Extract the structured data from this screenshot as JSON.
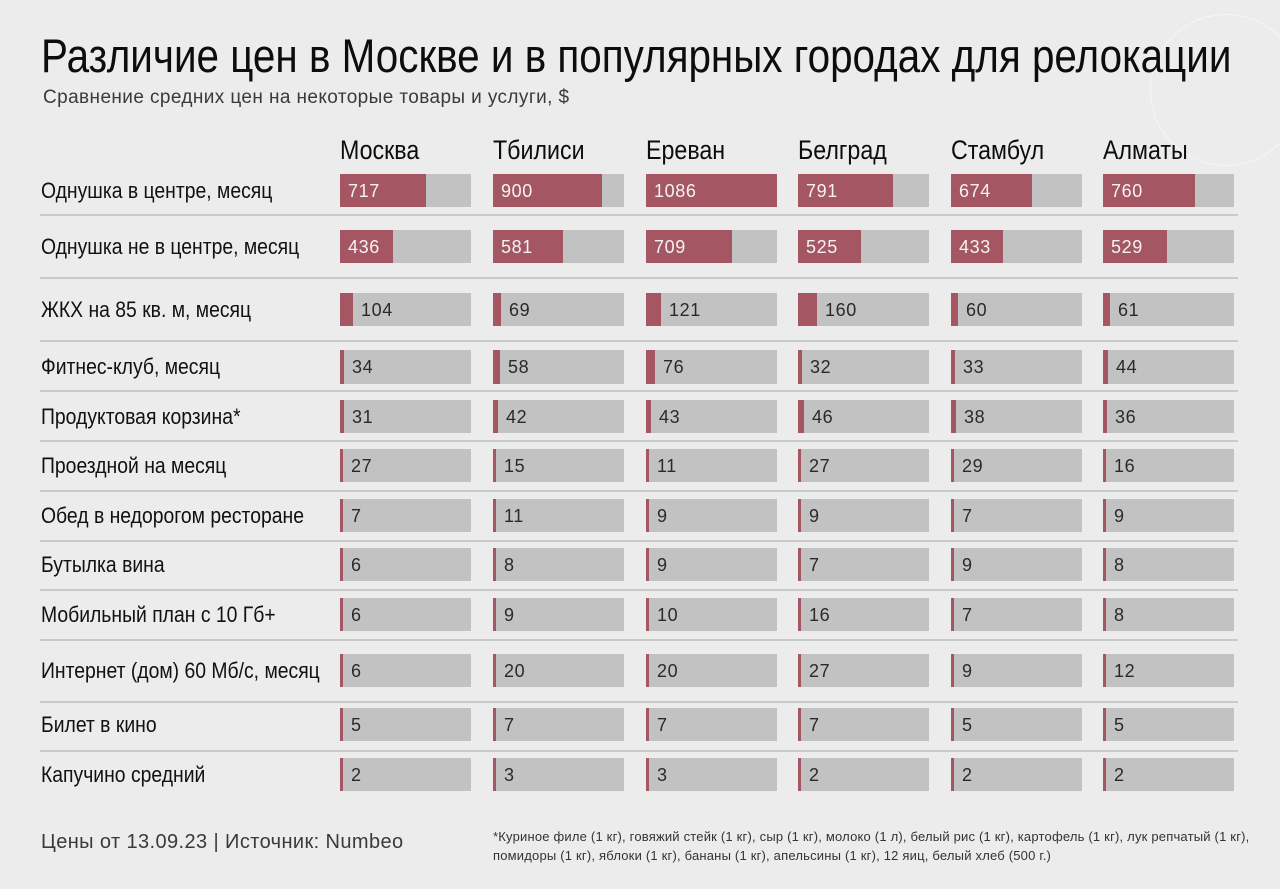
{
  "header": {
    "title": "Различие цен в Москве и в популярных городах для релокации",
    "subtitle": "Сравнение средних цен на некоторые товары и услуги, $"
  },
  "colors": {
    "background": "#ececec",
    "bar_fill": "#a45762",
    "bar_track": "#c2c2c2",
    "divider": "#c9c9c9"
  },
  "footer": {
    "source": "Цены от 13.09.23 | Источник: Numbeo",
    "footnote": "*Куриное филе (1 кг), говяжий стейк (1 кг), сыр (1 кг), молоко (1 л), белый рис (1 кг), картофель (1 кг), лук репчатый (1 кг), помидоры (1 кг), яблоки (1 кг), бананы (1 кг), апельсины (1 кг), 12 яиц, белый хлеб (500 г.)"
  },
  "chart_data": {
    "type": "table",
    "title": "Различие цен в Москве и в популярных городах для релокации",
    "subtitle": "Сравнение средних цен на некоторые товары и услуги, $",
    "unit": "$",
    "columns": [
      "Москва",
      "Тбилиси",
      "Ереван",
      "Белград",
      "Стамбул",
      "Алматы"
    ],
    "rows": [
      {
        "label": "Однушка в центре, месяц",
        "values": [
          717,
          900,
          1086,
          791,
          674,
          760
        ],
        "scale_max": 1086
      },
      {
        "label": "Однушка не в центре, месяц",
        "values": [
          436,
          581,
          709,
          525,
          433,
          529
        ],
        "scale_max": 1086
      },
      {
        "label": "ЖКХ на 85 кв. м, месяц",
        "values": [
          104,
          69,
          121,
          160,
          60,
          61
        ],
        "scale_max": 1086
      },
      {
        "label": "Фитнес-клуб, месяц",
        "values": [
          34,
          58,
          76,
          32,
          33,
          44
        ],
        "scale_max": 1086
      },
      {
        "label": "Продуктовая корзина*",
        "values": [
          31,
          42,
          43,
          46,
          38,
          36
        ],
        "scale_max": 1086
      },
      {
        "label": "Проездной на месяц",
        "values": [
          27,
          15,
          11,
          27,
          29,
          16
        ],
        "scale_max": 1086
      },
      {
        "label": "Обед в недорогом ресторане",
        "values": [
          7,
          11,
          9,
          9,
          7,
          9
        ],
        "scale_max": 1086
      },
      {
        "label": "Бутылка вина",
        "values": [
          6,
          8,
          9,
          7,
          9,
          8
        ],
        "scale_max": 1086
      },
      {
        "label": "Мобильный план с 10 Гб+",
        "values": [
          6,
          9,
          10,
          16,
          7,
          8
        ],
        "scale_max": 1086
      },
      {
        "label": "Интернет (дом) 60 Мб/с, месяц",
        "values": [
          6,
          20,
          20,
          27,
          9,
          12
        ],
        "scale_max": 1086
      },
      {
        "label": "Билет в кино",
        "values": [
          5,
          7,
          7,
          7,
          5,
          5
        ],
        "scale_max": 1086
      },
      {
        "label": "Капучино средний",
        "values": [
          2,
          3,
          3,
          2,
          2,
          2
        ],
        "scale_max": 1086
      }
    ]
  }
}
